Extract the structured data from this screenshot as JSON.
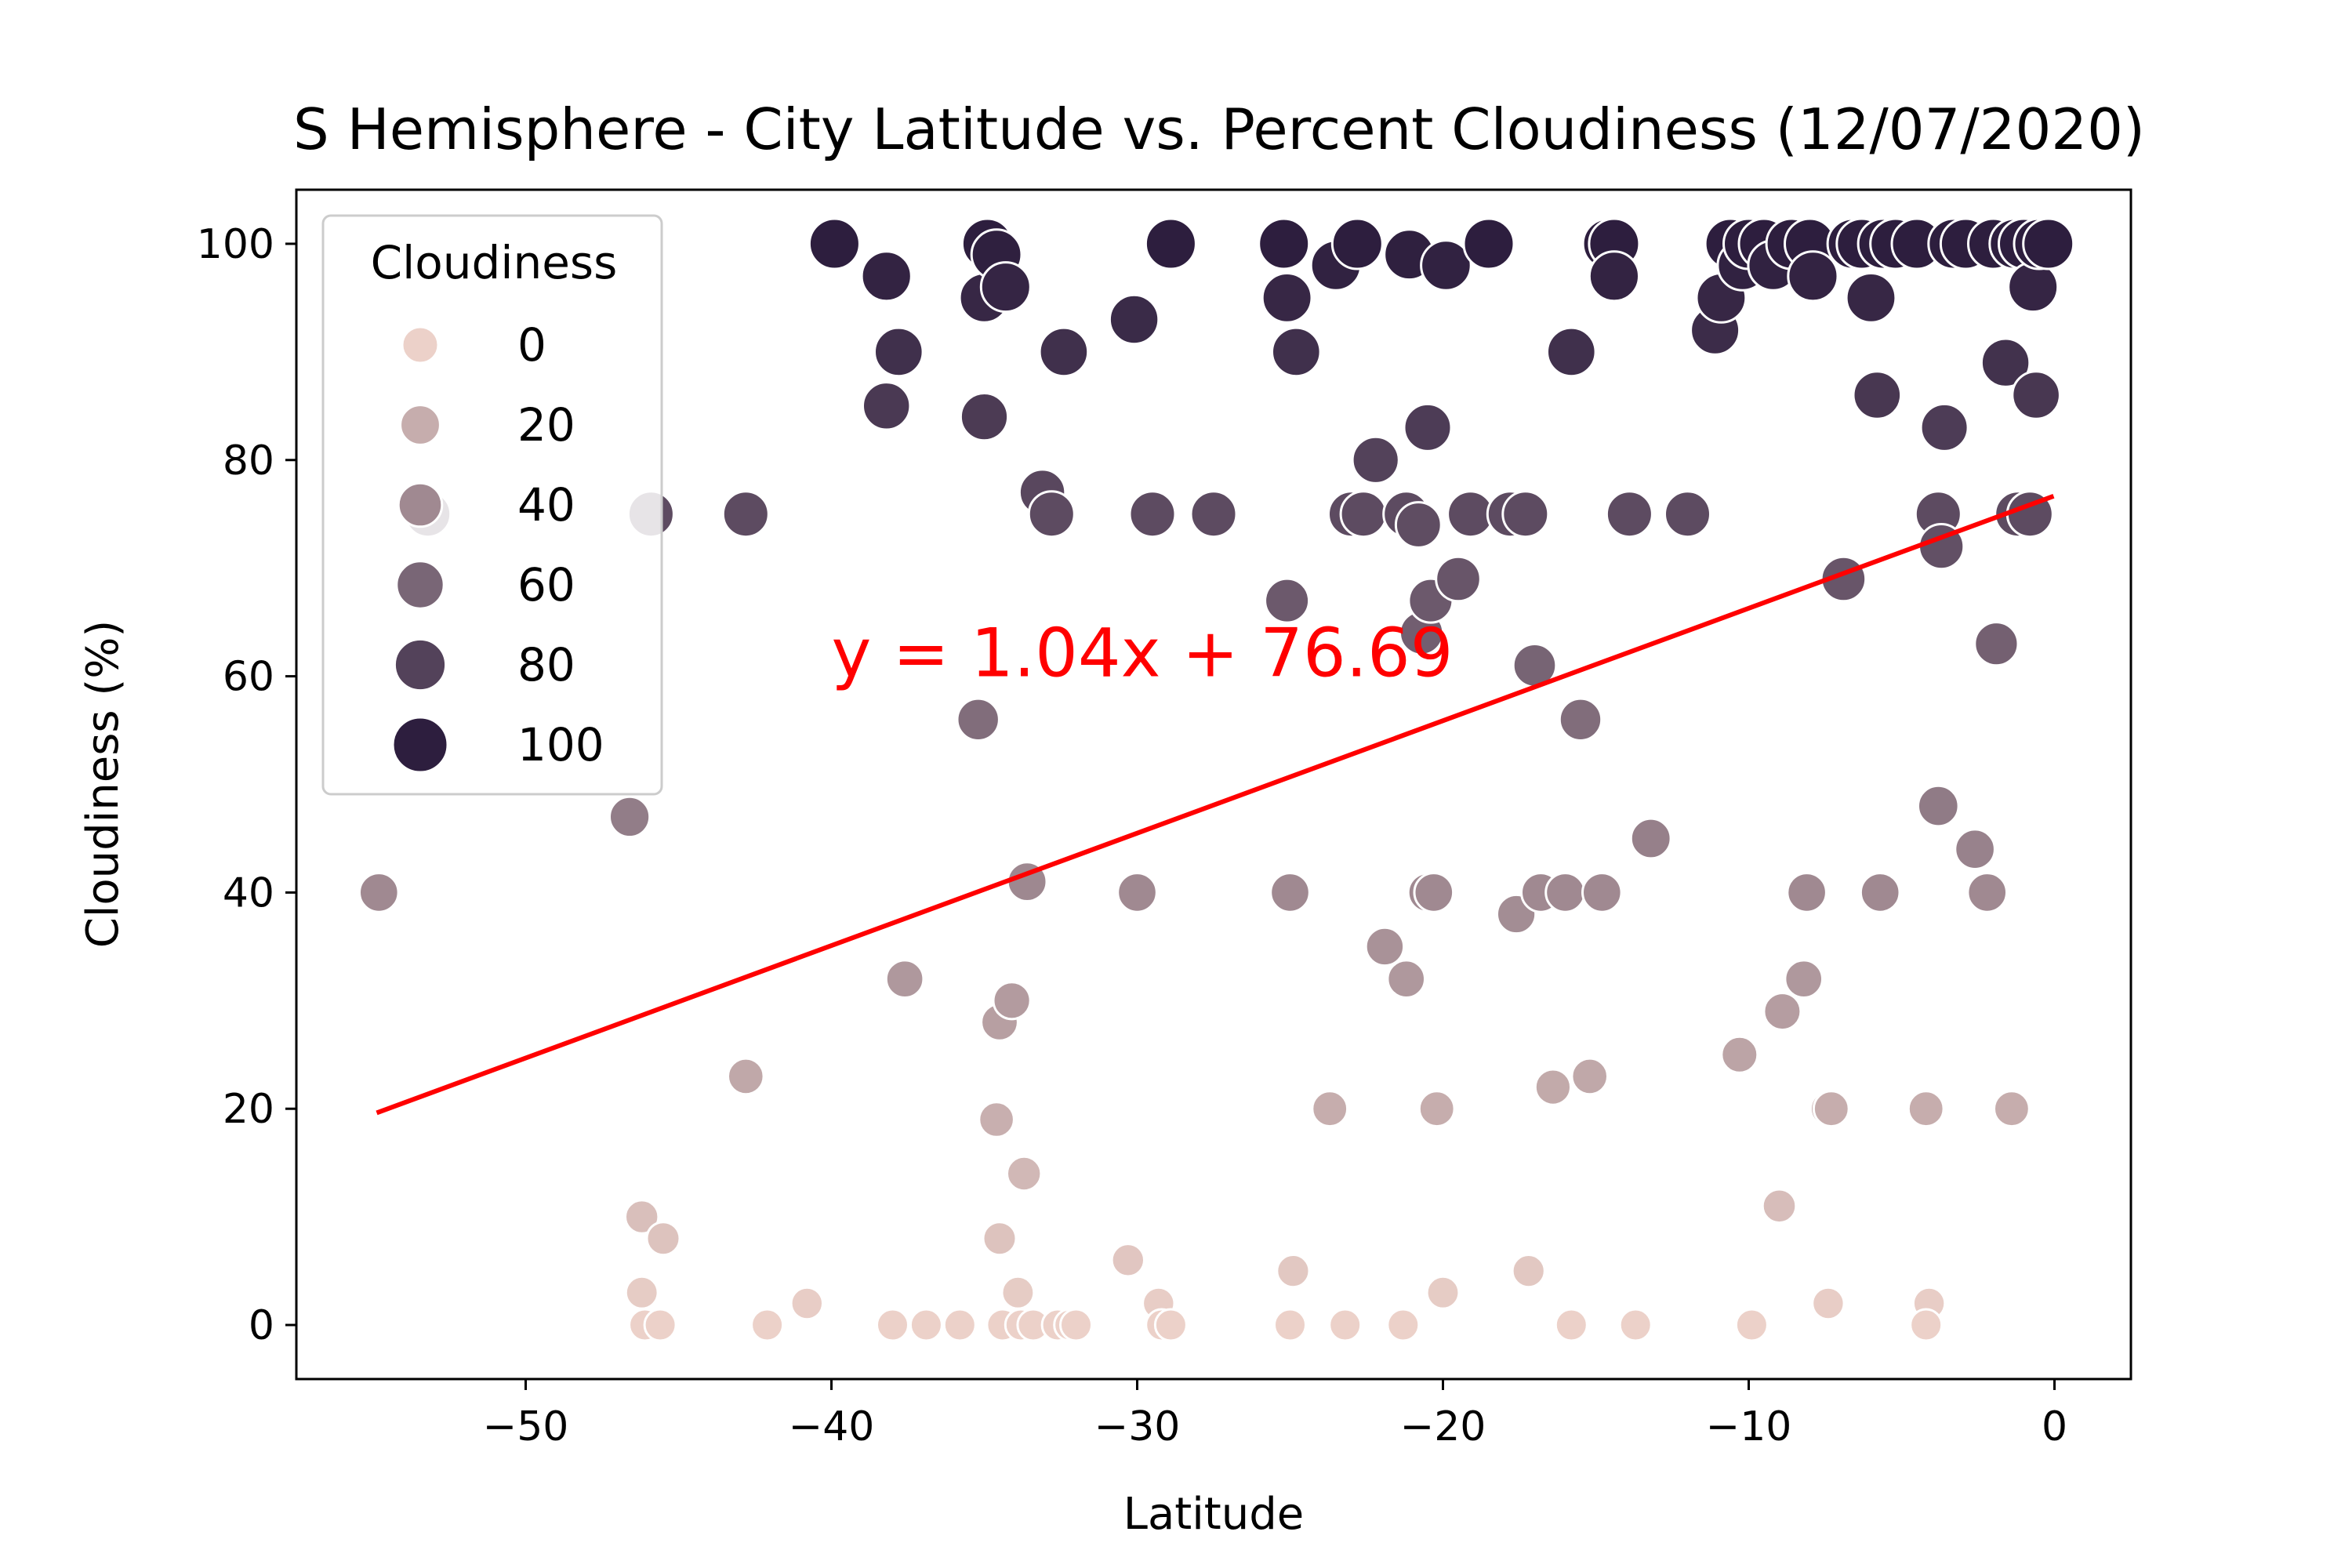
{
  "chart_data": {
    "type": "scatter",
    "title": "S Hemisphere - City Latitude vs. Percent Cloudiness (12/07/2020)",
    "xlabel": "Latitude",
    "ylabel": "Cloudiness (%)",
    "xlim": [
      -57.5,
      2.5
    ],
    "ylim": [
      -5,
      105
    ],
    "xticks": [
      -50,
      -40,
      -30,
      -20,
      -10,
      0
    ],
    "xtick_labels": [
      "−50",
      "−40",
      "−30",
      "−20",
      "−10",
      "0"
    ],
    "yticks": [
      0,
      20,
      40,
      60,
      80,
      100
    ],
    "ytick_labels": [
      "0",
      "20",
      "40",
      "60",
      "80",
      "100"
    ],
    "grid": false,
    "legend": {
      "title": "Cloudiness",
      "placement": "upper-left",
      "entries": [
        "0",
        "20",
        "40",
        "60",
        "80",
        "100"
      ],
      "entry_values": [
        0,
        20,
        40,
        60,
        80,
        100
      ]
    },
    "hue_color_low": "#ecd1c9",
    "hue_color_high": "#2d1e3e",
    "regression": {
      "equation": "y = 1.04x + 76.69",
      "slope": 1.04,
      "intercept": 76.69,
      "x_range": [
        -54.8,
        -0.1
      ],
      "color": "#ff0000",
      "label_at": [
        -40,
        60
      ]
    },
    "points": [
      [
        -54.8,
        40
      ],
      [
        -53.2,
        75
      ],
      [
        -46.6,
        47
      ],
      [
        -46.2,
        10
      ],
      [
        -46.2,
        3
      ],
      [
        -46.1,
        0
      ],
      [
        -45.9,
        75
      ],
      [
        -45.5,
        8
      ],
      [
        -45.6,
        0
      ],
      [
        -42.8,
        23
      ],
      [
        -42.8,
        75
      ],
      [
        -42.1,
        0
      ],
      [
        -40.8,
        2
      ],
      [
        -39.9,
        100
      ],
      [
        -38.2,
        97
      ],
      [
        -38.2,
        85
      ],
      [
        -38.0,
        0
      ],
      [
        -37.8,
        90
      ],
      [
        -37.6,
        32
      ],
      [
        -36.9,
        0
      ],
      [
        -35.8,
        0
      ],
      [
        -35.2,
        56
      ],
      [
        -35.0,
        95
      ],
      [
        -35.0,
        84
      ],
      [
        -34.9,
        100
      ],
      [
        -34.6,
        99
      ],
      [
        -34.6,
        19
      ],
      [
        -34.5,
        8
      ],
      [
        -34.5,
        28
      ],
      [
        -34.4,
        0
      ],
      [
        -34.3,
        96
      ],
      [
        -34.1,
        30
      ],
      [
        -33.9,
        3
      ],
      [
        -33.8,
        0
      ],
      [
        -33.7,
        14
      ],
      [
        -33.6,
        41
      ],
      [
        -33.4,
        0
      ],
      [
        -33.1,
        77
      ],
      [
        -32.8,
        75
      ],
      [
        -32.6,
        0
      ],
      [
        -32.4,
        90
      ],
      [
        -32.2,
        0
      ],
      [
        -32.0,
        0
      ],
      [
        -30.3,
        6
      ],
      [
        -30.1,
        93
      ],
      [
        -30.0,
        40
      ],
      [
        -29.5,
        75
      ],
      [
        -29.3,
        2
      ],
      [
        -29.2,
        0
      ],
      [
        -28.9,
        0
      ],
      [
        -28.9,
        100
      ],
      [
        -27.5,
        75
      ],
      [
        -25.2,
        100
      ],
      [
        -25.1,
        95
      ],
      [
        -25.1,
        67
      ],
      [
        -25.0,
        40
      ],
      [
        -25.0,
        0
      ],
      [
        -24.9,
        5
      ],
      [
        -24.8,
        90
      ],
      [
        -23.7,
        20
      ],
      [
        -23.5,
        98
      ],
      [
        -23.2,
        0
      ],
      [
        -23.0,
        75
      ],
      [
        -22.8,
        100
      ],
      [
        -22.6,
        75
      ],
      [
        -22.2,
        80
      ],
      [
        -21.9,
        35
      ],
      [
        -21.3,
        0
      ],
      [
        -21.2,
        32
      ],
      [
        -21.2,
        75
      ],
      [
        -21.1,
        99
      ],
      [
        -20.8,
        74
      ],
      [
        -20.7,
        64
      ],
      [
        -20.5,
        83
      ],
      [
        -20.5,
        40
      ],
      [
        -20.3,
        40
      ],
      [
        -20.2,
        20
      ],
      [
        -20.4,
        67
      ],
      [
        -20.0,
        3
      ],
      [
        -19.9,
        98
      ],
      [
        -19.5,
        69
      ],
      [
        -19.1,
        75
      ],
      [
        -18.5,
        100
      ],
      [
        -17.8,
        75
      ],
      [
        -17.6,
        38
      ],
      [
        -17.3,
        75
      ],
      [
        -17.2,
        5
      ],
      [
        -17.0,
        61
      ],
      [
        -16.8,
        40
      ],
      [
        -16.4,
        22
      ],
      [
        -16.0,
        40
      ],
      [
        -15.8,
        90
      ],
      [
        -15.8,
        0
      ],
      [
        -15.5,
        56
      ],
      [
        -15.2,
        23
      ],
      [
        -14.8,
        40
      ],
      [
        -14.6,
        100
      ],
      [
        -14.4,
        100
      ],
      [
        -14.4,
        97
      ],
      [
        -13.9,
        75
      ],
      [
        -13.7,
        0
      ],
      [
        -13.2,
        45
      ],
      [
        -12.0,
        75
      ],
      [
        -11.1,
        92
      ],
      [
        -10.9,
        95
      ],
      [
        -10.6,
        100
      ],
      [
        -10.3,
        25
      ],
      [
        -10.2,
        98
      ],
      [
        -10.0,
        100
      ],
      [
        -9.9,
        0
      ],
      [
        -9.5,
        100
      ],
      [
        -9.2,
        98
      ],
      [
        -9.0,
        11
      ],
      [
        -8.9,
        29
      ],
      [
        -8.6,
        100
      ],
      [
        -8.2,
        32
      ],
      [
        -8.1,
        40
      ],
      [
        -8.0,
        100
      ],
      [
        -7.9,
        97
      ],
      [
        -7.4,
        20
      ],
      [
        -7.3,
        20
      ],
      [
        -7.4,
        2
      ],
      [
        -6.9,
        69
      ],
      [
        -6.6,
        100
      ],
      [
        -6.3,
        100
      ],
      [
        -6.0,
        95
      ],
      [
        -5.8,
        86
      ],
      [
        -5.7,
        40
      ],
      [
        -5.6,
        100
      ],
      [
        -5.2,
        100
      ],
      [
        -4.5,
        100
      ],
      [
        -4.2,
        20
      ],
      [
        -4.1,
        2
      ],
      [
        -4.2,
        0
      ],
      [
        -3.8,
        48
      ],
      [
        -3.8,
        75
      ],
      [
        -3.7,
        72
      ],
      [
        -3.6,
        83
      ],
      [
        -3.3,
        100
      ],
      [
        -2.9,
        100
      ],
      [
        -2.6,
        44
      ],
      [
        -2.2,
        40
      ],
      [
        -2.0,
        100
      ],
      [
        -1.9,
        63
      ],
      [
        -1.6,
        89
      ],
      [
        -1.4,
        20
      ],
      [
        -1.3,
        100
      ],
      [
        -1.2,
        75
      ],
      [
        -1.0,
        100
      ],
      [
        -0.8,
        75
      ],
      [
        -0.7,
        96
      ],
      [
        -0.6,
        86
      ],
      [
        -0.5,
        100
      ],
      [
        -0.2,
        100
      ]
    ]
  }
}
